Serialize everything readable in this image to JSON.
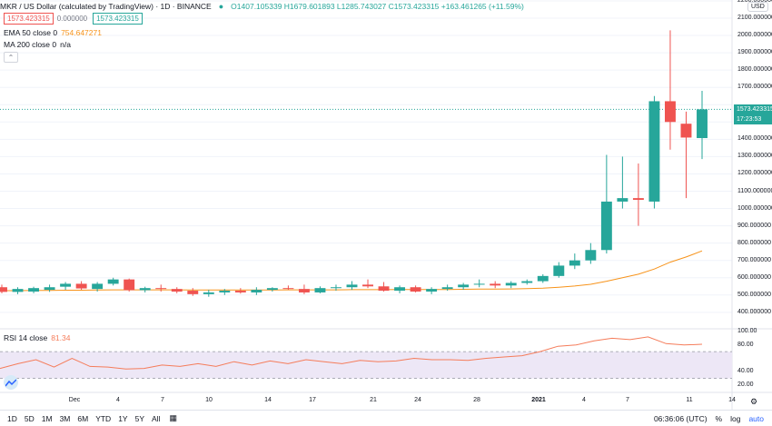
{
  "header": {
    "symbol_title": "MKR / US Dollar (calculated by TradingView) · 1D · BINANCE",
    "ohlc": "O1407.105339 H1679.601893 L1285.743027 C1573.423315 +163.461265 (+11.59%)",
    "bid": "1573.423315",
    "spread": "0.000000",
    "ask": "1573.423315"
  },
  "indicators": {
    "ema": {
      "label": "EMA 50 close 0",
      "value": "754.647271",
      "color": "#f7931a"
    },
    "ma": {
      "label": "MA 200 close 0",
      "value": "n/a"
    },
    "rsi": {
      "label": "RSI 14 close",
      "value": "81.34",
      "color": "#f57c5a"
    }
  },
  "price_axis": {
    "currency": "USD",
    "ticks": [
      "2200.000000",
      "2100.000000",
      "2000.000000",
      "1900.000000",
      "1800.000000",
      "1700.000000",
      "1573.423315",
      "17:23:53",
      "1400.000000",
      "1300.000000",
      "1200.000000",
      "1100.000000",
      "1000.000000",
      "900.000000",
      "800.000000",
      "700.000000",
      "600.000000",
      "500.000000",
      "400.000000"
    ],
    "tick_values": [
      2200,
      2100,
      2000,
      1900,
      1800,
      1700,
      null,
      null,
      1400,
      1300,
      1200,
      1100,
      1000,
      900,
      800,
      700,
      600,
      500,
      400
    ]
  },
  "rsi_axis": {
    "ticks": [
      "100.00",
      "80.00",
      "40.00",
      "20.00"
    ],
    "tick_values": [
      100,
      80,
      40,
      20
    ],
    "upper": 70,
    "lower": 30
  },
  "time_axis": [
    "Dec",
    "4",
    "7",
    "10",
    "14",
    "17",
    "21",
    "24",
    "28",
    "2021",
    "4",
    "7",
    "11",
    "14"
  ],
  "toolbar": {
    "timeframes": [
      "1D",
      "5D",
      "1M",
      "3M",
      "6M",
      "YTD",
      "1Y",
      "5Y",
      "All"
    ],
    "clock": "06:36:06 (UTC)",
    "pct": "%",
    "log": "log",
    "auto": "auto"
  },
  "colors": {
    "up": "#26a69a",
    "down": "#ef5350",
    "rsi_band": "#ede7f6"
  },
  "chart_data": {
    "type": "candlestick",
    "candles": [
      {
        "o": 545,
        "h": 560,
        "l": 510,
        "c": 518
      },
      {
        "o": 518,
        "h": 545,
        "l": 505,
        "c": 535
      },
      {
        "o": 520,
        "h": 548,
        "l": 510,
        "c": 540
      },
      {
        "o": 530,
        "h": 560,
        "l": 518,
        "c": 545
      },
      {
        "o": 548,
        "h": 575,
        "l": 530,
        "c": 565
      },
      {
        "o": 565,
        "h": 580,
        "l": 530,
        "c": 538
      },
      {
        "o": 535,
        "h": 575,
        "l": 520,
        "c": 565
      },
      {
        "o": 565,
        "h": 600,
        "l": 555,
        "c": 590
      },
      {
        "o": 590,
        "h": 595,
        "l": 520,
        "c": 528
      },
      {
        "o": 528,
        "h": 548,
        "l": 515,
        "c": 540
      },
      {
        "o": 540,
        "h": 560,
        "l": 520,
        "c": 535
      },
      {
        "o": 535,
        "h": 545,
        "l": 510,
        "c": 520
      },
      {
        "o": 525,
        "h": 540,
        "l": 495,
        "c": 505
      },
      {
        "o": 505,
        "h": 530,
        "l": 490,
        "c": 515
      },
      {
        "o": 515,
        "h": 535,
        "l": 500,
        "c": 525
      },
      {
        "o": 525,
        "h": 540,
        "l": 508,
        "c": 515
      },
      {
        "o": 515,
        "h": 545,
        "l": 500,
        "c": 530
      },
      {
        "o": 530,
        "h": 545,
        "l": 520,
        "c": 540
      },
      {
        "o": 540,
        "h": 555,
        "l": 530,
        "c": 535
      },
      {
        "o": 535,
        "h": 560,
        "l": 505,
        "c": 515
      },
      {
        "o": 515,
        "h": 550,
        "l": 510,
        "c": 540
      },
      {
        "o": 540,
        "h": 560,
        "l": 525,
        "c": 545
      },
      {
        "o": 545,
        "h": 580,
        "l": 530,
        "c": 560
      },
      {
        "o": 560,
        "h": 590,
        "l": 540,
        "c": 550
      },
      {
        "o": 550,
        "h": 575,
        "l": 520,
        "c": 525
      },
      {
        "o": 525,
        "h": 555,
        "l": 510,
        "c": 545
      },
      {
        "o": 545,
        "h": 555,
        "l": 515,
        "c": 520
      },
      {
        "o": 520,
        "h": 545,
        "l": 505,
        "c": 535
      },
      {
        "o": 535,
        "h": 560,
        "l": 525,
        "c": 545
      },
      {
        "o": 545,
        "h": 570,
        "l": 530,
        "c": 560
      },
      {
        "o": 560,
        "h": 590,
        "l": 545,
        "c": 565
      },
      {
        "o": 565,
        "h": 580,
        "l": 540,
        "c": 555
      },
      {
        "o": 555,
        "h": 580,
        "l": 540,
        "c": 570
      },
      {
        "o": 570,
        "h": 590,
        "l": 560,
        "c": 580
      },
      {
        "o": 580,
        "h": 620,
        "l": 570,
        "c": 610
      },
      {
        "o": 610,
        "h": 690,
        "l": 600,
        "c": 670
      },
      {
        "o": 670,
        "h": 740,
        "l": 650,
        "c": 700
      },
      {
        "o": 700,
        "h": 800,
        "l": 680,
        "c": 760
      },
      {
        "o": 760,
        "h": 1310,
        "l": 740,
        "c": 1040
      },
      {
        "o": 1040,
        "h": 1300,
        "l": 1000,
        "c": 1060
      },
      {
        "o": 1060,
        "h": 1260,
        "l": 900,
        "c": 1050
      },
      {
        "o": 1040,
        "h": 1650,
        "l": 1000,
        "c": 1620
      },
      {
        "o": 1620,
        "h": 2030,
        "l": 1340,
        "c": 1500
      },
      {
        "o": 1490,
        "h": 1560,
        "l": 1060,
        "c": 1410
      },
      {
        "o": 1407,
        "h": 1680,
        "l": 1286,
        "c": 1573
      }
    ],
    "ema50": [
      525,
      525,
      526,
      527,
      528,
      528,
      529,
      530,
      530,
      530,
      530,
      530,
      529,
      529,
      529,
      529,
      529,
      529,
      530,
      530,
      530,
      530,
      531,
      531,
      531,
      532,
      532,
      532,
      532,
      533,
      534,
      534,
      535,
      537,
      540,
      545,
      552,
      562,
      580,
      600,
      620,
      650,
      690,
      720,
      755
    ],
    "rsi": [
      45,
      52,
      58,
      47,
      60,
      48,
      47,
      44,
      45,
      50,
      48,
      52,
      48,
      55,
      50,
      56,
      52,
      58,
      55,
      52,
      57,
      55,
      56,
      60,
      58,
      58,
      57,
      60,
      62,
      64,
      70,
      78,
      80,
      86,
      90,
      88,
      92,
      82,
      80,
      81
    ]
  }
}
